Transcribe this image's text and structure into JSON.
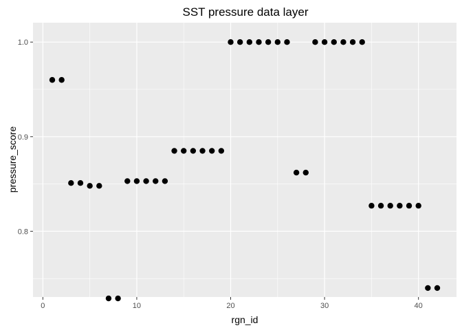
{
  "chart_data": {
    "type": "scatter",
    "title": "SST pressure data layer",
    "xlabel": "rgn_id",
    "ylabel": "pressure_score",
    "xlim": [
      -1.05,
      44.05
    ],
    "ylim": [
      0.7305,
      1.0205
    ],
    "x_major_ticks": [
      0,
      10,
      20,
      30,
      40
    ],
    "x_minor_ticks": [
      5,
      15,
      25,
      35
    ],
    "y_major_ticks": [
      0.8,
      0.9,
      1.0
    ],
    "y_minor_ticks": [
      0.75,
      0.85,
      0.95
    ],
    "x_tick_labels": [
      "0",
      "10",
      "20",
      "30",
      "40"
    ],
    "y_tick_labels": [
      "0.8",
      "0.9",
      "1.0"
    ],
    "grid": true,
    "colors": {
      "panel": "#ebebeb",
      "grid": "#ffffff",
      "point": "#000000"
    },
    "points": [
      {
        "x": 1,
        "y": 0.96
      },
      {
        "x": 2,
        "y": 0.96
      },
      {
        "x": 3,
        "y": 0.851
      },
      {
        "x": 4,
        "y": 0.851
      },
      {
        "x": 5,
        "y": 0.848
      },
      {
        "x": 6,
        "y": 0.848
      },
      {
        "x": 7,
        "y": 0.729
      },
      {
        "x": 8,
        "y": 0.729
      },
      {
        "x": 9,
        "y": 0.853
      },
      {
        "x": 10,
        "y": 0.853
      },
      {
        "x": 11,
        "y": 0.853
      },
      {
        "x": 12,
        "y": 0.853
      },
      {
        "x": 13,
        "y": 0.853
      },
      {
        "x": 14,
        "y": 0.885
      },
      {
        "x": 15,
        "y": 0.885
      },
      {
        "x": 16,
        "y": 0.885
      },
      {
        "x": 17,
        "y": 0.885
      },
      {
        "x": 18,
        "y": 0.885
      },
      {
        "x": 19,
        "y": 0.885
      },
      {
        "x": 20,
        "y": 1.0
      },
      {
        "x": 21,
        "y": 1.0
      },
      {
        "x": 22,
        "y": 1.0
      },
      {
        "x": 23,
        "y": 1.0
      },
      {
        "x": 24,
        "y": 1.0
      },
      {
        "x": 25,
        "y": 1.0
      },
      {
        "x": 26,
        "y": 1.0
      },
      {
        "x": 27,
        "y": 0.862
      },
      {
        "x": 28,
        "y": 0.862
      },
      {
        "x": 29,
        "y": 1.0
      },
      {
        "x": 30,
        "y": 1.0
      },
      {
        "x": 31,
        "y": 1.0
      },
      {
        "x": 32,
        "y": 1.0
      },
      {
        "x": 33,
        "y": 1.0
      },
      {
        "x": 34,
        "y": 1.0
      },
      {
        "x": 35,
        "y": 0.827
      },
      {
        "x": 36,
        "y": 0.827
      },
      {
        "x": 37,
        "y": 0.827
      },
      {
        "x": 38,
        "y": 0.827
      },
      {
        "x": 39,
        "y": 0.827
      },
      {
        "x": 40,
        "y": 0.827
      },
      {
        "x": 41,
        "y": 0.74
      },
      {
        "x": 42,
        "y": 0.74
      }
    ]
  }
}
